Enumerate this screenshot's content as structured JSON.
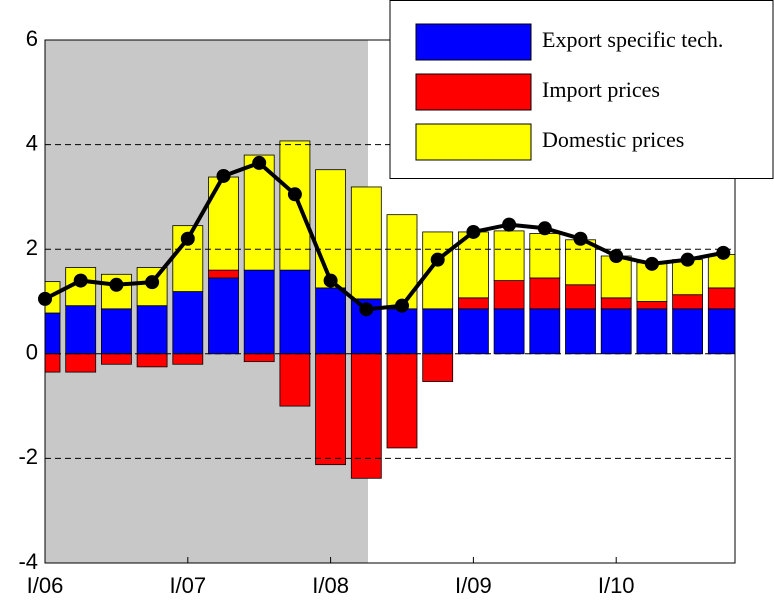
{
  "chart_data": {
    "type": "stacked_bar_line",
    "categories": [
      "I/06",
      null,
      null,
      null,
      "I/07",
      null,
      null,
      null,
      "I/08",
      null,
      null,
      null,
      "I/09",
      null,
      null,
      null,
      "I/10",
      null,
      null,
      null
    ],
    "series": [
      {
        "name": "Export specific tech.",
        "color": "#0000ff",
        "type": "bar",
        "values": [
          0.78,
          0.92,
          0.86,
          0.92,
          1.19,
          1.45,
          1.6,
          1.6,
          1.26,
          1.05,
          0.86,
          0.86,
          0.86,
          0.86,
          0.86,
          0.86,
          0.86,
          0.86,
          0.86,
          0.86
        ]
      },
      {
        "name": "Import prices",
        "color": "#ff0000",
        "type": "bar",
        "values": [
          -0.35,
          -0.35,
          -0.2,
          -0.25,
          -0.2,
          0.15,
          -0.15,
          -1.0,
          -2.12,
          -2.38,
          -1.8,
          -0.53,
          0.21,
          0.54,
          0.59,
          0.46,
          0.21,
          0.14,
          0.27,
          0.4
        ]
      },
      {
        "name": "Domestic prices",
        "color": "#ffff00",
        "type": "bar",
        "values": [
          0.6,
          0.73,
          0.66,
          0.73,
          1.26,
          1.78,
          2.2,
          2.47,
          2.26,
          2.14,
          1.8,
          1.47,
          1.26,
          0.95,
          0.85,
          0.86,
          0.8,
          0.74,
          0.67,
          0.64
        ]
      },
      {
        "color": "#000000",
        "type": "line",
        "values": [
          1.05,
          1.4,
          1.32,
          1.37,
          2.2,
          3.4,
          3.65,
          3.05,
          1.4,
          0.85,
          0.92,
          1.8,
          2.33,
          2.47,
          2.4,
          2.2,
          1.87,
          1.72,
          1.8,
          1.93
        ]
      }
    ],
    "ylim": [
      -4,
      6
    ],
    "yticks": [
      -4,
      -2,
      0,
      2,
      4,
      6
    ],
    "grid": true,
    "legend": "top-right"
  }
}
